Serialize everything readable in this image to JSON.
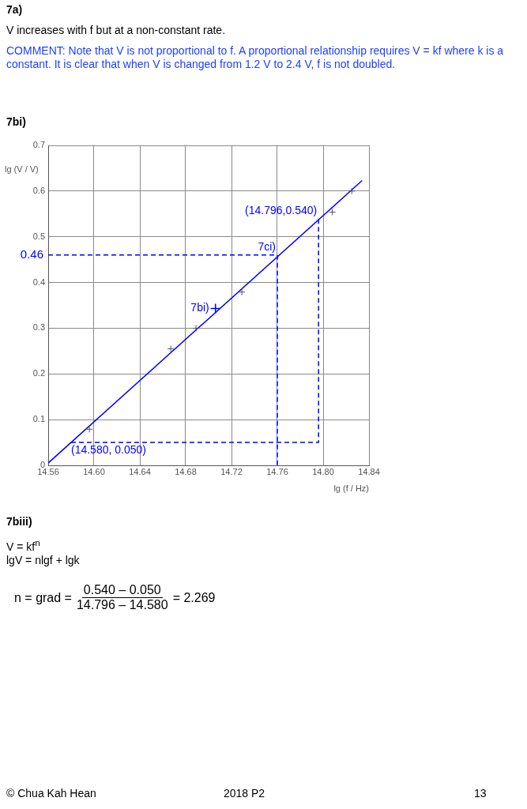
{
  "chart_data": {
    "type": "scatter",
    "title": "7bi)",
    "xlabel": "lg (f / Hz)",
    "ylabel": "lg (V / V)",
    "xlim": [
      14.56,
      14.84
    ],
    "xticks": [
      14.56,
      {
        "value": 14.6,
        "label": "14.60"
      },
      14.64,
      14.68,
      14.72,
      14.76,
      {
        "value": 14.8,
        "label": "14.80"
      },
      14.84
    ],
    "ylim": [
      0,
      0.7
    ],
    "yticks": [
      0,
      0.1,
      0.2,
      0.3,
      0.4,
      0.5,
      0.6,
      0.7
    ],
    "grid": true,
    "legend": false,
    "series": [
      {
        "color": "#555555",
        "marker": "cross",
        "x": [
          14.596,
          14.667,
          14.689,
          14.729,
          14.808,
          14.825
        ],
        "values": [
          0.079,
          0.255,
          0.3,
          0.379,
          0.554,
          0.6
        ]
      },
      {
        "color": "#0000ff",
        "marker": "cross",
        "x": [
          14.706
        ],
        "values": [
          0.343
        ]
      },
      {
        "type": "line",
        "color": "#0000ff",
        "marker": "none",
        "line_style": "solid",
        "x": [
          14.56,
          14.834
        ],
        "values": [
          0.005,
          0.623
        ]
      },
      {
        "type": "line",
        "color": "#0000ff",
        "marker": "none",
        "line_style": "dashed",
        "x": [
          14.56,
          14.76,
          14.76
        ],
        "values": [
          0.46,
          0.46,
          0
        ]
      },
      {
        "type": "line",
        "color": "#0000ff",
        "marker": "none",
        "line_style": "dashed",
        "x": [
          14.58,
          14.796,
          14.796
        ],
        "values": [
          0.05,
          0.05,
          0.54
        ]
      }
    ],
    "annotations": [
      "7a)",
      "V increases with f but at a non-constant rate.",
      "COMMENT: Note that V is not proportional to f. A proportional relationship requires V = kf where k is a constant. It is clear that when V is changed from 1.2 V to 2.4 V, f is not doubled.",
      "7biii)",
      "V = kf$^{n}$",
      "lgV = nlgf + lgk",
      "n = grad =",
      "0.540 – 0.050",
      "14.796 – 14.580",
      "= 2.269",
      "© Chua Kah Hean",
      "2018 P2",
      "13",
      {
        "text": "(14.796,0.540)",
        "x": 14.796,
        "y": 0.54
      },
      {
        "text": "7ci)",
        "x": 14.76,
        "y": 0.46
      },
      {
        "text": "7bi)",
        "x": 14.706,
        "y": 0.343
      },
      {
        "text": "(14.580, 0.050)",
        "x": 14.58,
        "y": 0.05
      },
      {
        "text": "0.46",
        "x": 14.56,
        "y": 0.46
      }
    ]
  }
}
